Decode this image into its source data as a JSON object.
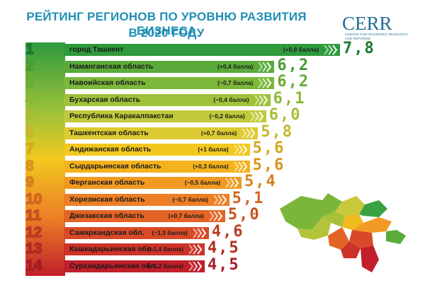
{
  "header": {
    "title_line1": "РЕЙТИНГ РЕГИОНОВ ПО УРОВНЮ РАЗВИТИЯ БИЗНЕСА",
    "title_line2": "В 2020 ГОДУ",
    "logo_text": "CERR",
    "logo_subtitle": "Center for economic research and reforms"
  },
  "colors": {
    "title": "#1f8fb5",
    "logo": "#1f6f93"
  },
  "chart_data": {
    "type": "bar",
    "title": "РЕЙТИНГ РЕГИОНОВ ПО УРОВНЮ РАЗВИТИЯ БИЗНЕСА В 2020 ГОДУ",
    "orientation": "horizontal",
    "categories": [
      "город Ташкент",
      "Наманганская область",
      "Навоийская область",
      "Бухарская область",
      "Республика Каракалпакстан",
      "Ташкентская область",
      "Андижанская область",
      "Сырдарьинская область",
      "Ферганская область",
      "Хорезмская область",
      "Джизакская область",
      "Самаркандская обл.",
      "Кашкадарьинская обл.",
      "Сурхандарьинская обл."
    ],
    "ranks": [
      "1",
      "2",
      "3",
      "4",
      "5",
      "6",
      "7",
      "8",
      "9",
      "10",
      "11",
      "12",
      "13",
      "14"
    ],
    "values": [
      7.8,
      6.2,
      6.2,
      6.1,
      6.0,
      5.8,
      5.6,
      5.6,
      5.4,
      5.1,
      5.0,
      4.6,
      4.5,
      4.5
    ],
    "value_labels": [
      "7,8",
      "6,2",
      "6,2",
      "6,1",
      "6,0",
      "5,8",
      "5,6",
      "5,6",
      "5,4",
      "5,1",
      "5,0",
      "4,6",
      "4,5",
      "4,5"
    ],
    "changes": [
      "(+0,9 балла)",
      "(+0,4 балла)",
      "(−0,7 балла)",
      "(−0,4 балла)",
      "(−0,2 балла)",
      "(+0,7 балла)",
      "(+1 балла)",
      "(+0,3 балла)",
      "(−0,5 балла)",
      "(−0,7 балла)",
      "(+0,7 балла)",
      "(−1,3 балла)",
      "(−1,4 балла)",
      "(+0,2 балла)"
    ],
    "bar_colors": [
      "#2e9a3c",
      "#5aab3a",
      "#7cb83a",
      "#9ec23a",
      "#c0c93a",
      "#dccb32",
      "#f2c81e",
      "#f4b31d",
      "#f19a22",
      "#ec7f26",
      "#e36426",
      "#d84a27",
      "#cc3228",
      "#c01f2a"
    ],
    "score_colors": [
      "#1d7a2e",
      "#4a9a31",
      "#6bab33",
      "#8cb735",
      "#a7bd33",
      "#c3b82c",
      "#d6a61c",
      "#d99419",
      "#d8801b",
      "#d2661f",
      "#c8511f",
      "#bb3c21",
      "#b02a22",
      "#a51d24"
    ]
  }
}
